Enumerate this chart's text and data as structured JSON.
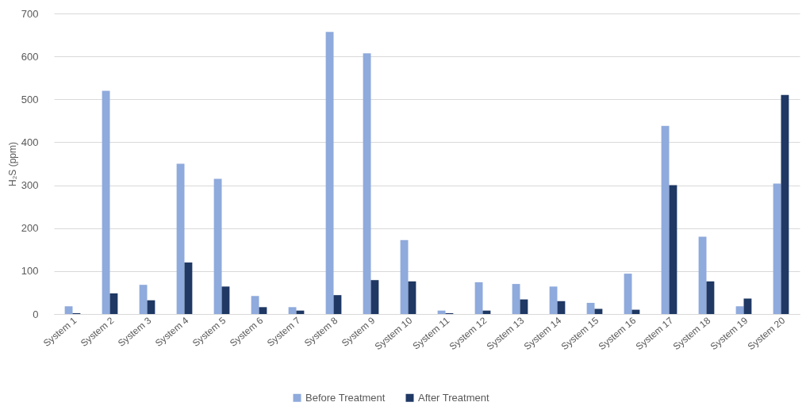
{
  "chart_data": {
    "type": "bar",
    "ylabel": "H₂S (ppm)",
    "categories": [
      "System 1",
      "System 2",
      "System 3",
      "System 4",
      "System 5",
      "System 6",
      "System 7",
      "System 8",
      "System 9",
      "System 10",
      "System 11",
      "System 12",
      "System 13",
      "System 14",
      "System 15",
      "System 16",
      "System 17",
      "System 18",
      "System 19",
      "System 20"
    ],
    "series": [
      {
        "name": "Before Treatment",
        "color": "#8faadc",
        "values": [
          18,
          520,
          68,
          350,
          315,
          42,
          16,
          657,
          607,
          172,
          8,
          74,
          70,
          64,
          26,
          94,
          438,
          180,
          18,
          304
        ]
      },
      {
        "name": "After Treatment",
        "color": "#1f3864",
        "values": [
          2,
          48,
          32,
          120,
          64,
          16,
          8,
          44,
          79,
          76,
          2,
          8,
          34,
          30,
          12,
          10,
          300,
          76,
          36,
          510
        ]
      }
    ],
    "ylim": [
      0,
      700
    ],
    "yticks": [
      0,
      100,
      200,
      300,
      400,
      500,
      600,
      700
    ],
    "grid": "y",
    "legend": "bottom"
  }
}
